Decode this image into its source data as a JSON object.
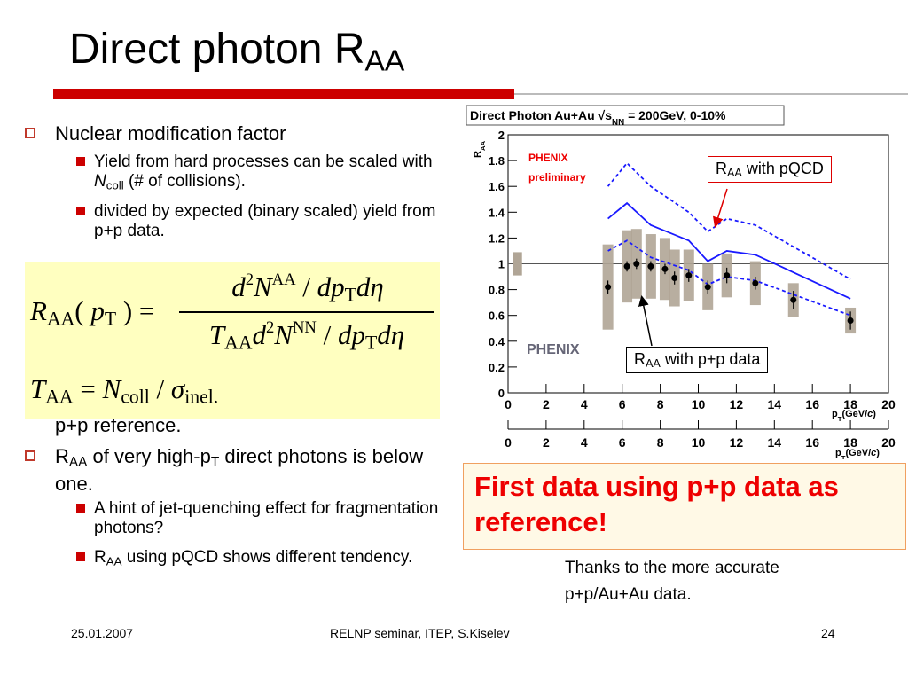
{
  "slide": {
    "title": [
      {
        "t": "Direct photon R"
      },
      {
        "sub": "AA"
      }
    ],
    "bullets": [
      {
        "text": [
          {
            "t": "Nuclear modification factor"
          }
        ],
        "items": [
          [
            {
              "t": "Yield from hard processes can be scaled with "
            },
            {
              "i": "N"
            },
            {
              "sub": "coll"
            },
            {
              "t": " (# of collisions)."
            }
          ],
          [
            {
              "t": "divided by expected (binary scaled) yield from p+p data."
            }
          ]
        ]
      },
      {
        "text": [
          {
            "t": "p+p reference."
          }
        ],
        "items": []
      },
      {
        "text": [
          {
            "t": "R"
          },
          {
            "sub": "AA"
          },
          {
            "t": " of very high-p"
          },
          {
            "sub": "T"
          },
          {
            "t": " direct photons is below one."
          }
        ],
        "items": [
          [
            {
              "t": "A hint of jet-quenching effect for fragmentation photons?"
            }
          ],
          [
            {
              "t": "R"
            },
            {
              "sub": "AA"
            },
            {
              "t": " using pQCD shows different tendency."
            }
          ]
        ]
      }
    ],
    "formula": {
      "lhs": [
        {
          "i": "R"
        },
        {
          "sub": "AA"
        },
        {
          "t": "( "
        },
        {
          "i": "p"
        },
        {
          "sub": "T"
        },
        {
          "t": " ) ="
        }
      ],
      "numerator": [
        {
          "i": "d"
        },
        {
          "sup": "2"
        },
        {
          "i": "N"
        },
        {
          "sup": "AA"
        },
        {
          "t": " / "
        },
        {
          "i": "dp"
        },
        {
          "sub": "T"
        },
        {
          "i": "d"
        },
        {
          "i": "η"
        }
      ],
      "denominator": [
        {
          "i": "T"
        },
        {
          "sub": "AA"
        },
        {
          "i": "d"
        },
        {
          "sup": "2"
        },
        {
          "i": "N"
        },
        {
          "sup": "NN"
        },
        {
          "t": " / "
        },
        {
          "i": "dp"
        },
        {
          "sub": "T"
        },
        {
          "i": "d"
        },
        {
          "i": "η"
        }
      ],
      "second": [
        {
          "i": "T"
        },
        {
          "sub": "AA"
        },
        {
          "t": " = "
        },
        {
          "i": "N"
        },
        {
          "sub": "coll"
        },
        {
          "t": " / "
        },
        {
          "i": "σ"
        },
        {
          "sub": "inel."
        }
      ]
    },
    "callouts": {
      "pqcd": [
        {
          "t": "R"
        },
        {
          "sub": "AA"
        },
        {
          "t": " with pQCD"
        }
      ],
      "pp": [
        {
          "t": "R"
        },
        {
          "sub": "AA"
        },
        {
          "t": " with p+p data"
        }
      ],
      "headline": "First data using p+p data as reference!",
      "thanks": "Thanks to the more accurate p+p/Au+Au data."
    },
    "footer": {
      "date": "25.01.2007",
      "center": "RELNP seminar,  ITEP,  S.Kiselev",
      "page": "24"
    }
  },
  "chart": {
    "type": "scatter",
    "title": [
      {
        "t": "Direct Photon Au+Au "
      },
      {
        "t": "√"
      },
      {
        "t": "s"
      },
      {
        "sub": "NN"
      },
      {
        "t": " = 200GeV, 0-10%"
      }
    ],
    "ylabel": [
      {
        "t": "R"
      },
      {
        "sub": "AA"
      }
    ],
    "xlabel": [
      {
        "t": "p"
      },
      {
        "sub": "T"
      },
      {
        "t": "(GeV/"
      },
      {
        "i": "c"
      },
      {
        "t": ")"
      }
    ],
    "labels": [
      "PHENIX",
      "preliminary"
    ],
    "logo": "PHENIX",
    "xlim": [
      0,
      20
    ],
    "ylim": [
      0,
      2
    ],
    "xticks": [
      0,
      2,
      4,
      6,
      8,
      10,
      12,
      14,
      16,
      18,
      20
    ],
    "yticks": [
      0,
      0.2,
      0.4,
      0.6,
      0.8,
      1,
      1.2,
      1.4,
      1.6,
      1.8,
      2
    ],
    "ref_line": 1,
    "points": {
      "color": "#000000",
      "box_color": "#b0a596",
      "x": [
        5.25,
        6.25,
        6.75,
        7.5,
        8.25,
        8.75,
        9.5,
        10.5,
        11.5,
        13,
        15,
        18
      ],
      "values": [
        0.82,
        0.98,
        1.0,
        0.98,
        0.96,
        0.89,
        0.91,
        0.82,
        0.91,
        0.85,
        0.72,
        0.56
      ],
      "errors": [
        0.05,
        0.04,
        0.04,
        0.04,
        0.04,
        0.05,
        0.05,
        0.05,
        0.06,
        0.05,
        0.07,
        0.07
      ],
      "sys": [
        0.33,
        0.28,
        0.27,
        0.25,
        0.24,
        0.22,
        0.2,
        0.18,
        0.17,
        0.17,
        0.13,
        0.1
      ]
    },
    "norm_box": {
      "x": 0.5,
      "value": 1,
      "error": 0.09
    },
    "pqcd": {
      "color": "#1a1aff",
      "x": [
        5.25,
        6.25,
        7.5,
        9.5,
        10.5,
        11.5,
        13,
        18
      ],
      "values": [
        1.35,
        1.47,
        1.3,
        1.18,
        1.02,
        1.1,
        1.07,
        0.73
      ],
      "upper": [
        1.6,
        1.78,
        1.6,
        1.4,
        1.25,
        1.35,
        1.3,
        0.88
      ],
      "lower": [
        1.1,
        1.18,
        1.05,
        0.95,
        0.84,
        0.9,
        0.87,
        0.6
      ]
    }
  }
}
